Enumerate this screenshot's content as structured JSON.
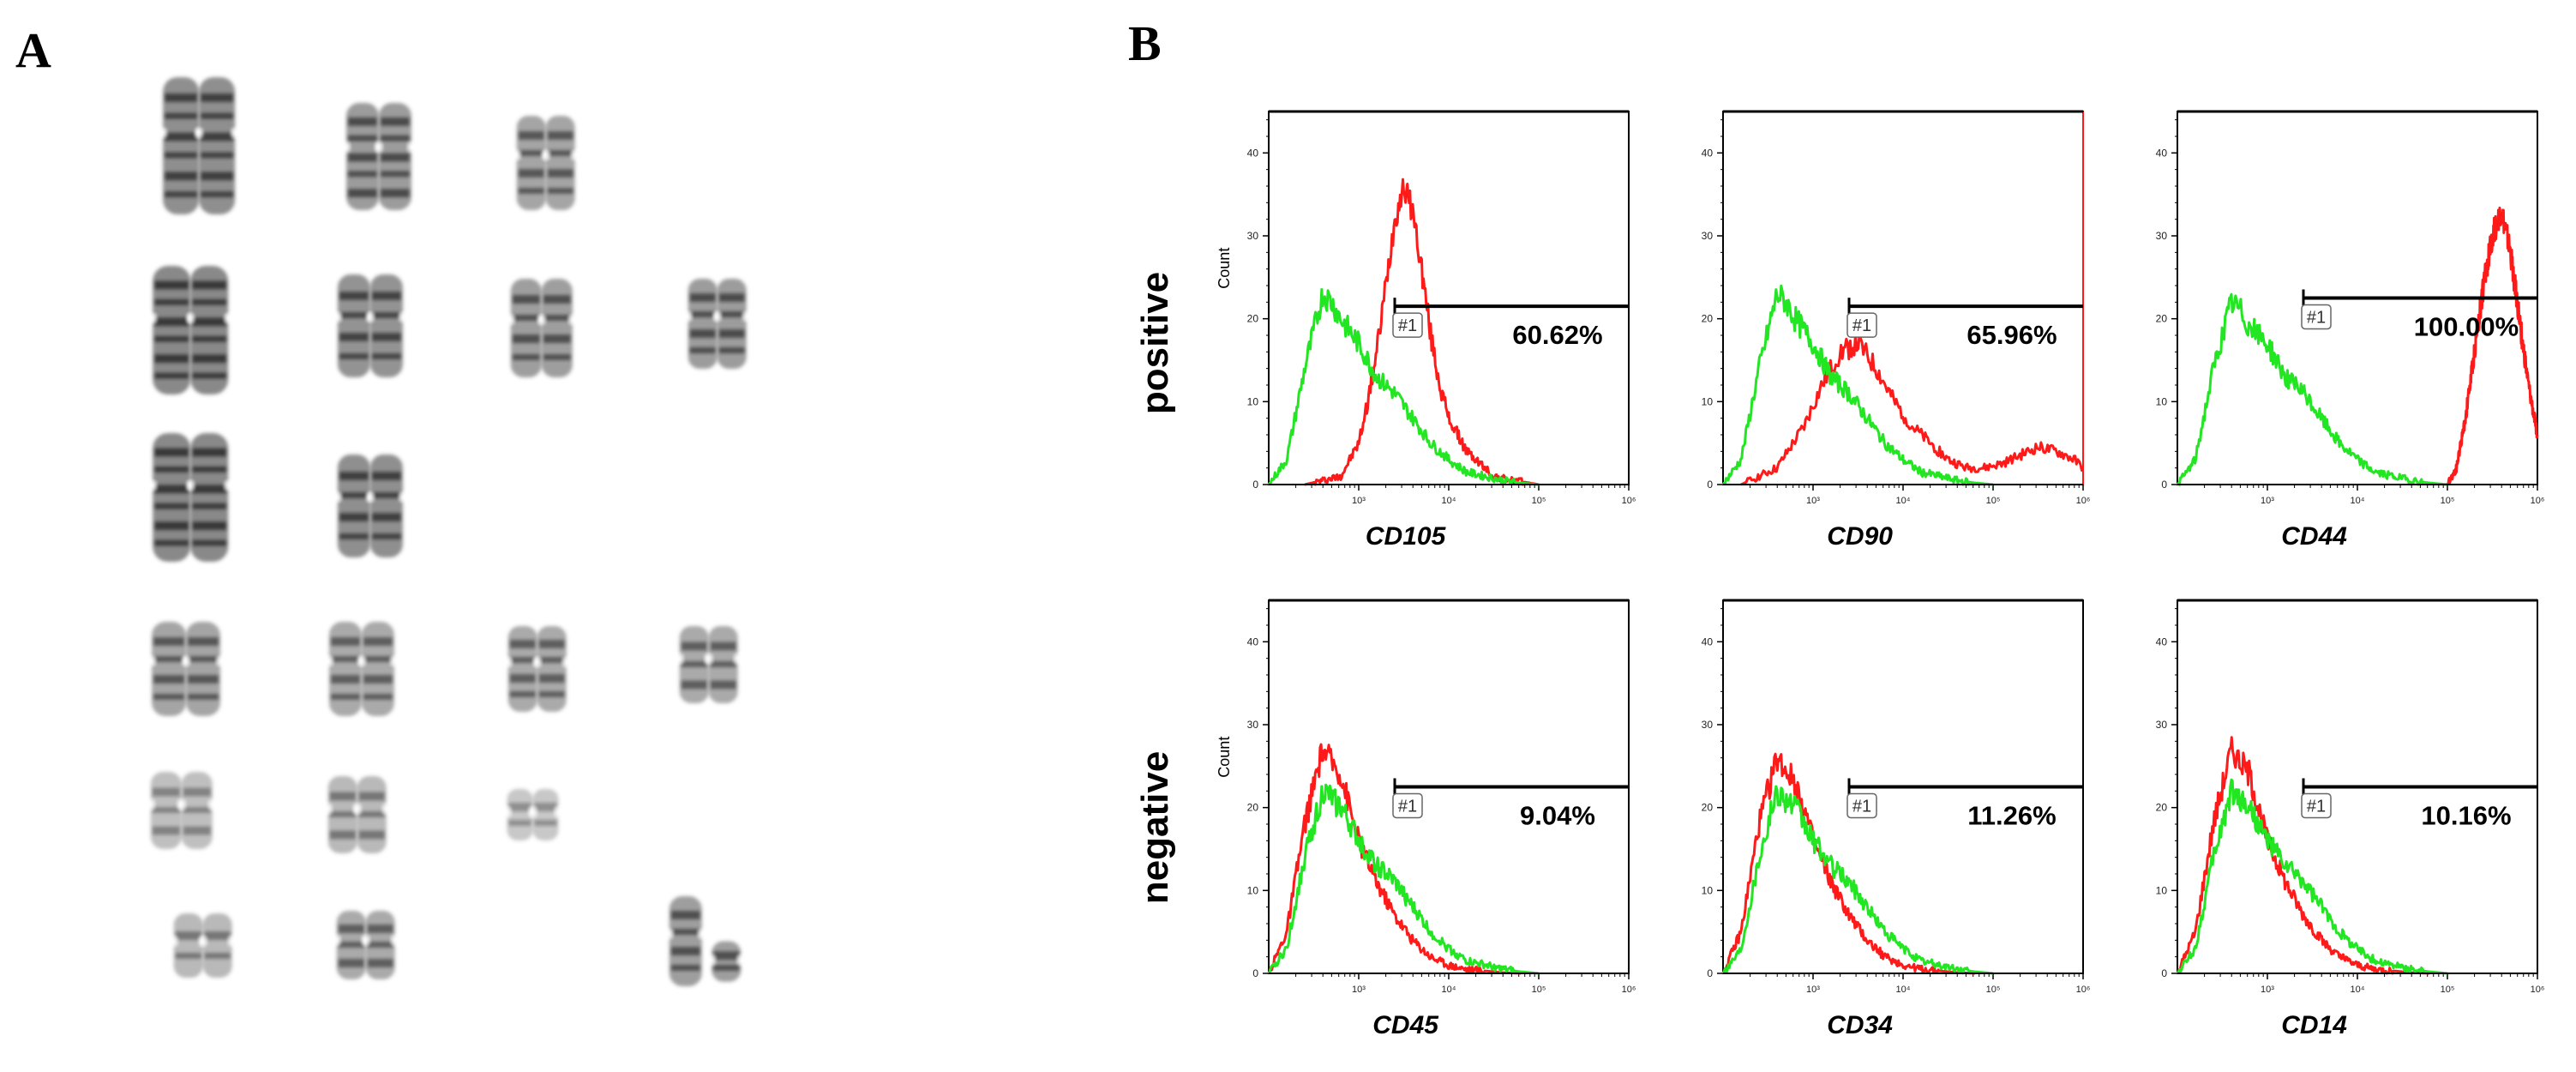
{
  "panels": {
    "a_label": "A",
    "b_label": "B"
  },
  "rows": [
    {
      "label": "positive",
      "show_ylabel": true
    },
    {
      "label": "negative",
      "show_ylabel": true
    }
  ],
  "colors": {
    "sample": "#ff1a1a",
    "control": "#22e622",
    "axis": "#000000"
  },
  "chart_data": [
    {
      "type": "line",
      "row": 0,
      "col": 0,
      "marker": "CD105",
      "ylabel": "Count",
      "gate_label": "#1",
      "gate_percent": "60.62%",
      "gate_start": 3.4,
      "gate_y": 21.5,
      "xscale": "log",
      "xlim": [
        2,
        6
      ],
      "ylim": [
        0,
        45
      ],
      "yticks": [
        0,
        10,
        20,
        30,
        40
      ],
      "xticks": [
        "10³",
        "10⁴",
        "10⁵",
        "10⁶"
      ],
      "series": [
        {
          "color_key": "sample",
          "x": [
            2.4,
            2.8,
            3.0,
            3.1,
            3.2,
            3.3,
            3.4,
            3.5,
            3.6,
            3.7,
            3.8,
            3.9,
            4.0,
            4.1,
            4.2,
            4.3,
            4.5,
            4.7,
            4.9,
            5.0
          ],
          "y": [
            0,
            1,
            5,
            10,
            16,
            24,
            32,
            36,
            33,
            26,
            18,
            12,
            8,
            6,
            4,
            3,
            1,
            0.5,
            0.2,
            0
          ]
        },
        {
          "color_key": "control",
          "x": [
            2.0,
            2.2,
            2.4,
            2.6,
            2.7,
            2.8,
            3.0,
            3.2,
            3.4,
            3.6,
            3.8,
            4.0,
            4.2,
            4.4,
            4.6,
            4.8,
            5.0
          ],
          "y": [
            0,
            3,
            14,
            23,
            22,
            20,
            17,
            13,
            11,
            8,
            5,
            3,
            1.5,
            1,
            0.5,
            0.2,
            0
          ]
        }
      ]
    },
    {
      "type": "line",
      "row": 0,
      "col": 1,
      "marker": "CD90",
      "ylabel": "",
      "gate_label": "#1",
      "gate_percent": "65.96%",
      "gate_start": 3.4,
      "gate_y": 21.5,
      "xscale": "log",
      "xlim": [
        2,
        6
      ],
      "ylim": [
        0,
        45
      ],
      "yticks": [
        0,
        10,
        20,
        30,
        40
      ],
      "xticks": [
        "10³",
        "10⁴",
        "10⁵",
        "10⁶"
      ],
      "series": [
        {
          "color_key": "sample",
          "x": [
            2.2,
            2.6,
            2.9,
            3.1,
            3.3,
            3.5,
            3.7,
            3.9,
            4.1,
            4.3,
            4.5,
            4.7,
            4.9,
            5.1,
            5.3,
            5.5,
            5.7,
            5.9,
            6.0
          ],
          "y": [
            0,
            2,
            7,
            12,
            16,
            17,
            14,
            10,
            7,
            5,
            3,
            2,
            2,
            2.5,
            3.5,
            4.5,
            4,
            3,
            2
          ]
        },
        {
          "color_key": "control",
          "x": [
            2.0,
            2.2,
            2.4,
            2.6,
            2.7,
            2.8,
            3.0,
            3.2,
            3.4,
            3.6,
            3.8,
            4.0,
            4.2,
            4.4,
            4.6,
            4.8,
            5.0
          ],
          "y": [
            0,
            3,
            14,
            23,
            22,
            20,
            17,
            13,
            11,
            8,
            5,
            3,
            1.5,
            1,
            0.5,
            0.2,
            0
          ]
        }
      ]
    },
    {
      "type": "line",
      "row": 0,
      "col": 2,
      "marker": "CD44",
      "ylabel": "",
      "gate_label": "#1",
      "gate_percent": "100.00%",
      "gate_start": 3.4,
      "gate_y": 22.5,
      "xscale": "log",
      "xlim": [
        2,
        6
      ],
      "ylim": [
        0,
        45
      ],
      "yticks": [
        0,
        10,
        20,
        30,
        40
      ],
      "xticks": [
        "10³",
        "10⁴",
        "10⁵",
        "10⁶"
      ],
      "series": [
        {
          "color_key": "sample",
          "x": [
            5.0,
            5.1,
            5.2,
            5.3,
            5.4,
            5.5,
            5.6,
            5.7,
            5.8,
            5.9,
            6.0
          ],
          "y": [
            0,
            2,
            8,
            16,
            24,
            30,
            33,
            28,
            20,
            12,
            6
          ]
        },
        {
          "color_key": "control",
          "x": [
            2.0,
            2.2,
            2.4,
            2.6,
            2.7,
            2.8,
            3.0,
            3.2,
            3.4,
            3.6,
            3.8,
            4.0,
            4.2,
            4.4,
            4.6,
            4.8,
            5.0
          ],
          "y": [
            0,
            3,
            14,
            22,
            21,
            19,
            17,
            13,
            11,
            8,
            5,
            3,
            1.5,
            1,
            0.5,
            0.2,
            0
          ]
        }
      ]
    },
    {
      "type": "line",
      "row": 1,
      "col": 0,
      "marker": "CD45",
      "ylabel": "Count",
      "gate_label": "#1",
      "gate_percent": "9.04%",
      "gate_start": 3.4,
      "gate_y": 22.5,
      "xscale": "log",
      "xlim": [
        2,
        6
      ],
      "ylim": [
        0,
        45
      ],
      "yticks": [
        0,
        10,
        20,
        30,
        40
      ],
      "xticks": [
        "10³",
        "10⁴",
        "10⁵",
        "10⁶"
      ],
      "series": [
        {
          "color_key": "sample",
          "x": [
            2.0,
            2.2,
            2.4,
            2.6,
            2.8,
            2.9,
            3.0,
            3.2,
            3.4,
            3.6,
            3.8,
            4.0,
            4.2,
            4.4,
            4.6,
            4.8
          ],
          "y": [
            0,
            5,
            18,
            27,
            24,
            20,
            16,
            11,
            7,
            4,
            2,
            1,
            0.5,
            0.3,
            0.1,
            0
          ]
        },
        {
          "color_key": "control",
          "x": [
            2.0,
            2.2,
            2.4,
            2.6,
            2.8,
            3.0,
            3.2,
            3.4,
            3.6,
            3.8,
            4.0,
            4.2,
            4.4,
            4.6,
            4.8,
            5.0
          ],
          "y": [
            0,
            3,
            14,
            22,
            20,
            16,
            13,
            11,
            8,
            5,
            3,
            1.5,
            1,
            0.5,
            0.2,
            0
          ]
        }
      ]
    },
    {
      "type": "line",
      "row": 1,
      "col": 1,
      "marker": "CD34",
      "ylabel": "",
      "gate_label": "#1",
      "gate_percent": "11.26%",
      "gate_start": 3.4,
      "gate_y": 22.5,
      "xscale": "log",
      "xlim": [
        2,
        6
      ],
      "ylim": [
        0,
        45
      ],
      "yticks": [
        0,
        10,
        20,
        30,
        40
      ],
      "xticks": [
        "10³",
        "10⁴",
        "10⁵",
        "10⁶"
      ],
      "series": [
        {
          "color_key": "sample",
          "x": [
            2.0,
            2.2,
            2.4,
            2.6,
            2.8,
            2.9,
            3.0,
            3.2,
            3.4,
            3.6,
            3.8,
            4.0,
            4.2,
            4.4,
            4.6,
            4.8
          ],
          "y": [
            0,
            5,
            18,
            26,
            23,
            20,
            16,
            11,
            7,
            4,
            2,
            1,
            0.5,
            0.3,
            0.1,
            0
          ]
        },
        {
          "color_key": "control",
          "x": [
            2.0,
            2.2,
            2.4,
            2.6,
            2.8,
            3.0,
            3.2,
            3.4,
            3.6,
            3.8,
            4.0,
            4.2,
            4.4,
            4.6,
            4.8,
            5.0
          ],
          "y": [
            0,
            3,
            14,
            22,
            20,
            16,
            13,
            11,
            8,
            5,
            3,
            1.5,
            1,
            0.5,
            0.2,
            0
          ]
        }
      ]
    },
    {
      "type": "line",
      "row": 1,
      "col": 2,
      "marker": "CD14",
      "ylabel": "",
      "gate_label": "#1",
      "gate_percent": "10.16%",
      "gate_start": 3.4,
      "gate_y": 22.5,
      "xscale": "log",
      "xlim": [
        2,
        6
      ],
      "ylim": [
        0,
        45
      ],
      "yticks": [
        0,
        10,
        20,
        30,
        40
      ],
      "xticks": [
        "10³",
        "10⁴",
        "10⁵",
        "10⁶"
      ],
      "series": [
        {
          "color_key": "sample",
          "x": [
            2.0,
            2.2,
            2.4,
            2.6,
            2.8,
            2.9,
            3.0,
            3.2,
            3.4,
            3.6,
            3.8,
            4.0,
            4.2,
            4.4,
            4.6,
            4.8
          ],
          "y": [
            0,
            5,
            18,
            27,
            24,
            20,
            16,
            11,
            7,
            4,
            2,
            1,
            0.5,
            0.3,
            0.1,
            0
          ]
        },
        {
          "color_key": "control",
          "x": [
            2.0,
            2.2,
            2.4,
            2.6,
            2.8,
            3.0,
            3.2,
            3.4,
            3.6,
            3.8,
            4.0,
            4.2,
            4.4,
            4.6,
            4.8,
            5.0
          ],
          "y": [
            0,
            3,
            14,
            22,
            20,
            16,
            13,
            11,
            8,
            5,
            3,
            1.5,
            1,
            0.5,
            0.2,
            0
          ]
        }
      ]
    }
  ]
}
